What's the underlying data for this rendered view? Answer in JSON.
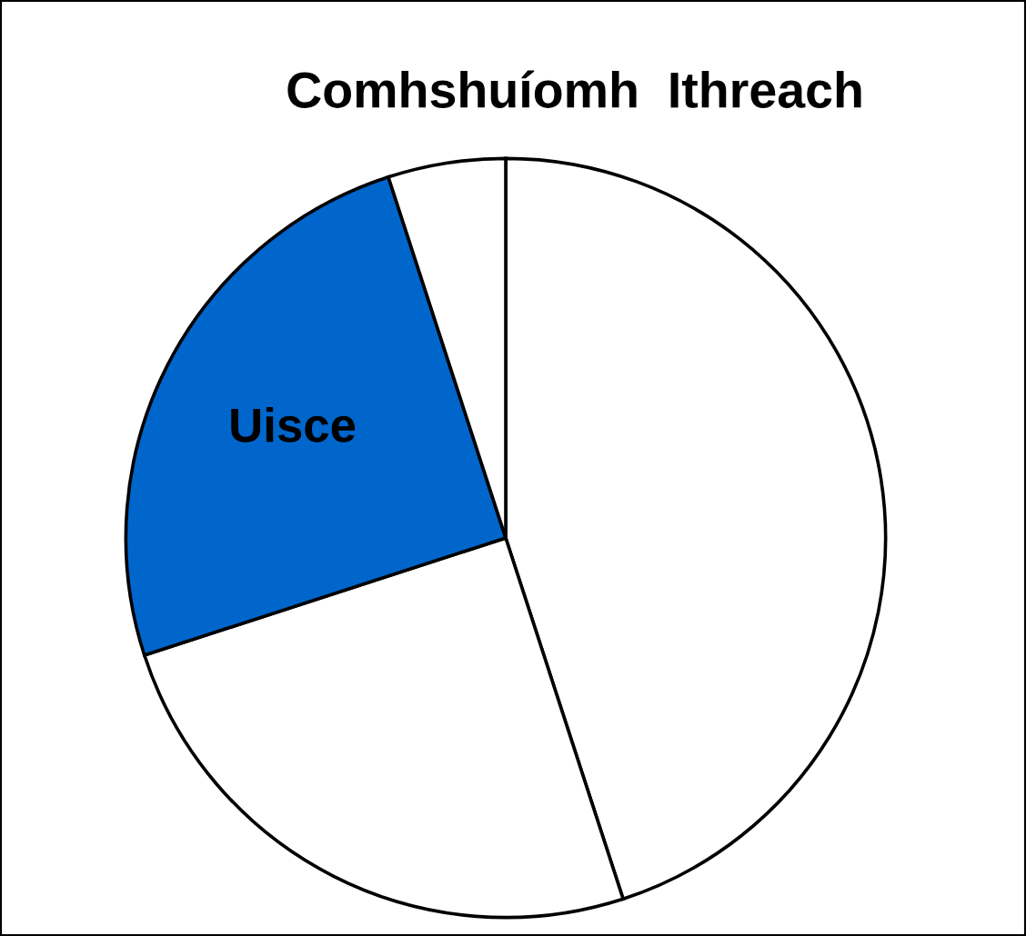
{
  "chart_data": {
    "type": "pie",
    "title": "Comhshuíomh  Ithreach",
    "categories": [
      null,
      null,
      "Uisce",
      null
    ],
    "values": [
      45,
      25,
      25,
      5
    ],
    "colors": [
      "#ffffff",
      "#ffffff",
      "#0066cc",
      "#ffffff"
    ],
    "legend": false
  }
}
